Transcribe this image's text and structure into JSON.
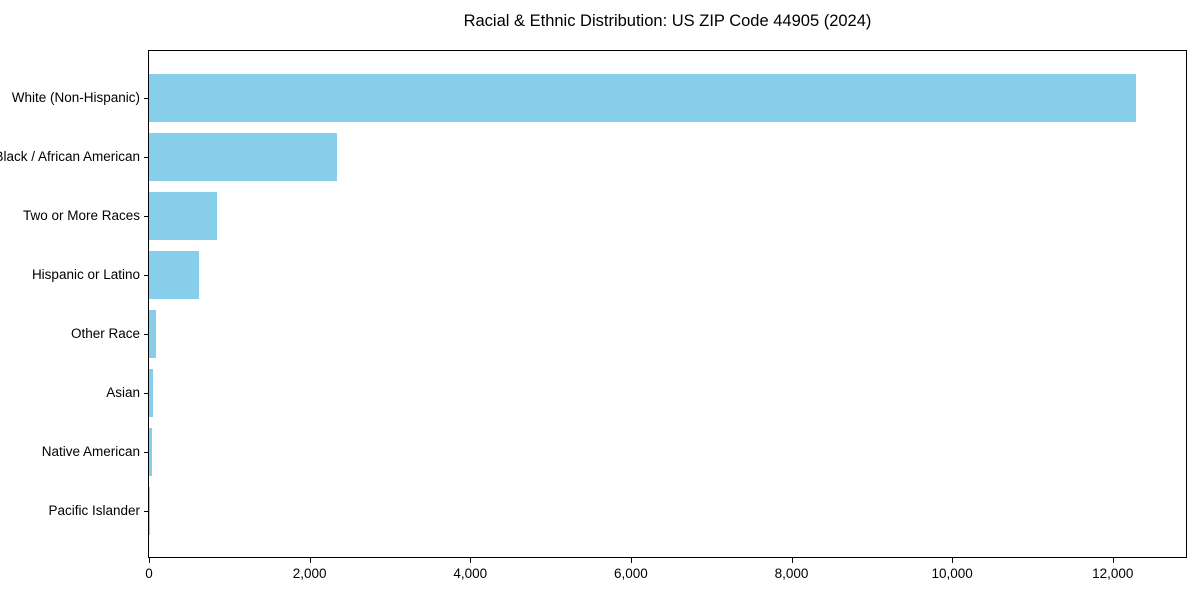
{
  "chart_data": {
    "type": "bar",
    "orientation": "horizontal",
    "title": "Racial & Ethnic Distribution: US ZIP Code 44905 (2024)",
    "categories": [
      "White (Non-Hispanic)",
      "Black / African American",
      "Two or More Races",
      "Hispanic or Latino",
      "Other Race",
      "Asian",
      "Native American",
      "Pacific Islander"
    ],
    "values": [
      12285,
      2347,
      842,
      626,
      87,
      45,
      40,
      5
    ],
    "xlabel": "",
    "ylabel": "",
    "xlim": [
      0,
      12912
    ],
    "xticks": {
      "values": [
        0,
        2000,
        4000,
        6000,
        8000,
        10000,
        12000
      ],
      "labels": [
        "0",
        "2,000",
        "4,000",
        "6,000",
        "8,000",
        "10,000",
        "12,000"
      ]
    },
    "grid": "off",
    "legend": "none",
    "bar_color": "#87CEEB",
    "spine_color": "#000000",
    "background_color": "#ffffff"
  }
}
